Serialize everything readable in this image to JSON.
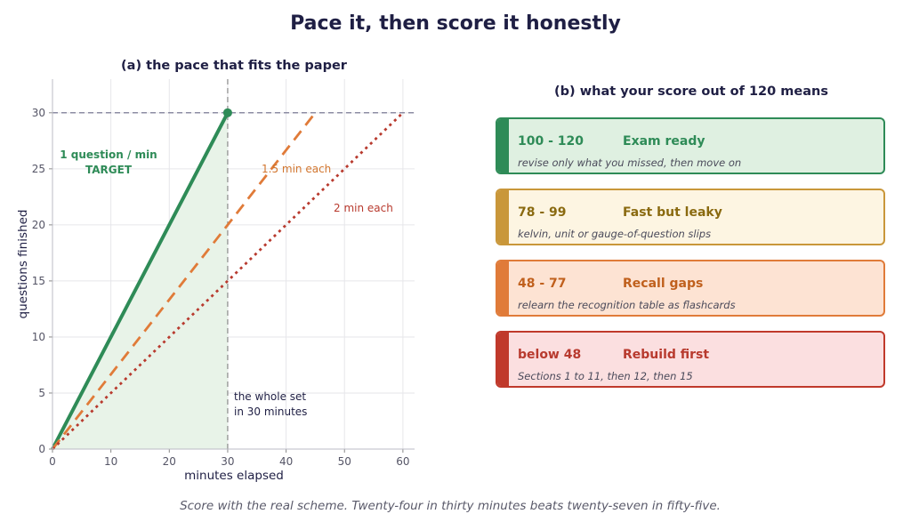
{
  "title": "Pace it, then score it honestly",
  "caption": "Score with the real scheme. Twenty-four in thirty minutes beats twenty-seven in fifty-five.",
  "colors": {
    "green": "#2e8b57",
    "orange": "#e07b39",
    "red": "#b83a2e",
    "grid": "#e6e6ea",
    "fill": "#e8f3e8"
  },
  "chart_data": {
    "type": "line",
    "title": "(a)  the pace that fits the paper",
    "xlabel": "minutes elapsed",
    "ylabel": "questions finished",
    "xlim": [
      0,
      62
    ],
    "ylim": [
      0,
      33
    ],
    "xticks": [
      0,
      10,
      20,
      30,
      40,
      50,
      60
    ],
    "yticks": [
      0,
      5,
      10,
      15,
      20,
      25,
      30
    ],
    "grid": true,
    "series": [
      {
        "name": "1 question / min",
        "x": [
          0,
          30
        ],
        "y": [
          0,
          30
        ],
        "style": "solid",
        "color": "#2e8b57"
      },
      {
        "name": "1.5 min each",
        "x": [
          0,
          45
        ],
        "y": [
          0,
          30
        ],
        "style": "dashed",
        "color": "#e07b39"
      },
      {
        "name": "2 min each",
        "x": [
          0,
          60
        ],
        "y": [
          0,
          30
        ],
        "style": "dotted",
        "color": "#b83a2e"
      }
    ],
    "reference_lines": {
      "target_y": 30,
      "target_x": 30
    },
    "target_point": {
      "x": 30,
      "y": 30
    },
    "annotations": {
      "target_line1": "1 question / min",
      "target_line2": "TARGET",
      "label_15": "1.5 min each",
      "label_2": "2 min each",
      "whole_set_line1": "the whole set",
      "whole_set_line2": "in 30 minutes"
    }
  },
  "panel_b": {
    "title": "(b)  what your score out of 120 means",
    "bands": [
      {
        "range": "100 - 120",
        "label": "Exam ready",
        "desc": "revise only what you missed, then move on",
        "border": "#2e8b57",
        "bg": "#dff0e1",
        "text": "#2e8b57"
      },
      {
        "range": "78 - 99",
        "label": "Fast but leaky",
        "desc": "kelvin, unit or gauge-of-question slips",
        "border": "#c9973a",
        "bg": "#fdf5e2",
        "text": "#8a6a10"
      },
      {
        "range": "48 - 77",
        "label": "Recall gaps",
        "desc": "relearn the recognition table as flashcards",
        "border": "#e07b39",
        "bg": "#fde3d3",
        "text": "#c0601d"
      },
      {
        "range": "below 48",
        "label": "Rebuild first",
        "desc": "Sections 1 to 11, then 12, then 15",
        "border": "#c0392b",
        "bg": "#fbdfe0",
        "text": "#b83a2e"
      }
    ]
  }
}
